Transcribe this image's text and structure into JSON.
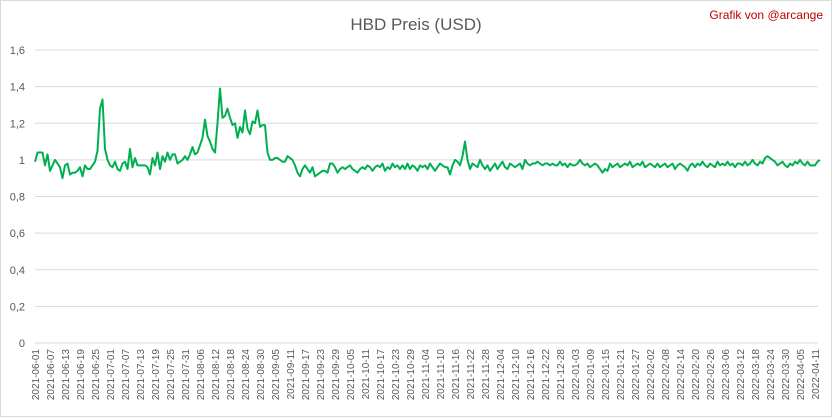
{
  "chart_data": {
    "type": "line",
    "title": "HBD Preis (USD)",
    "annotation": "Grafik von @arcange",
    "grid": true,
    "ylim": [
      0,
      1.6
    ],
    "yticks": [
      0,
      {
        "value": 0.2,
        "label": "0,2"
      },
      {
        "value": 0.4,
        "label": "0,4"
      },
      {
        "value": 0.6,
        "label": "0,6"
      },
      {
        "value": 0.8,
        "label": "0,8"
      },
      1,
      {
        "value": 1.2,
        "label": "1,2"
      },
      {
        "value": 1.4,
        "label": "1,4"
      },
      {
        "value": 1.6,
        "label": "1,6"
      }
    ],
    "categories": [
      "2021-06-01",
      null,
      null,
      null,
      null,
      null,
      "2021-06-07",
      null,
      null,
      null,
      null,
      null,
      "2021-06-13",
      null,
      null,
      null,
      null,
      null,
      "2021-06-19",
      null,
      null,
      null,
      null,
      null,
      "2021-06-25",
      null,
      null,
      null,
      null,
      null,
      "2021-07-01",
      null,
      null,
      null,
      null,
      null,
      "2021-07-07",
      null,
      null,
      null,
      null,
      null,
      "2021-07-13",
      null,
      null,
      null,
      null,
      null,
      "2021-07-19",
      null,
      null,
      null,
      null,
      null,
      "2021-07-25",
      null,
      null,
      null,
      null,
      null,
      "2021-07-31",
      null,
      null,
      null,
      null,
      null,
      "2021-08-06",
      null,
      null,
      null,
      null,
      null,
      "2021-08-12",
      null,
      null,
      null,
      null,
      null,
      "2021-08-18",
      null,
      null,
      null,
      null,
      null,
      "2021-08-24",
      null,
      null,
      null,
      null,
      null,
      "2021-08-30",
      null,
      null,
      null,
      null,
      null,
      "2021-09-05",
      null,
      null,
      null,
      null,
      null,
      "2021-09-11",
      null,
      null,
      null,
      null,
      null,
      "2021-09-17",
      null,
      null,
      null,
      null,
      null,
      "2021-09-23",
      null,
      null,
      null,
      null,
      null,
      "2021-09-29",
      null,
      null,
      null,
      null,
      null,
      "2021-10-05",
      null,
      null,
      null,
      null,
      null,
      "2021-10-11",
      null,
      null,
      null,
      null,
      null,
      "2021-10-17",
      null,
      null,
      null,
      null,
      null,
      "2021-10-23",
      null,
      null,
      null,
      null,
      null,
      "2021-10-29",
      null,
      null,
      null,
      null,
      null,
      "2021-11-04",
      null,
      null,
      null,
      null,
      null,
      "2021-11-10",
      null,
      null,
      null,
      null,
      null,
      "2021-11-16",
      null,
      null,
      null,
      null,
      null,
      "2021-11-22",
      null,
      null,
      null,
      null,
      null,
      "2021-11-28",
      null,
      null,
      null,
      null,
      null,
      "2021-12-04",
      null,
      null,
      null,
      null,
      null,
      "2021-12-10",
      null,
      null,
      null,
      null,
      null,
      "2021-12-16",
      null,
      null,
      null,
      null,
      null,
      "2021-12-22",
      null,
      null,
      null,
      null,
      null,
      "2021-12-28",
      null,
      null,
      null,
      null,
      null,
      "2022-01-03",
      null,
      null,
      null,
      null,
      null,
      "2022-01-09",
      null,
      null,
      null,
      null,
      null,
      "2022-01-15",
      null,
      null,
      null,
      null,
      null,
      "2022-01-21",
      null,
      null,
      null,
      null,
      null,
      "2022-01-27",
      null,
      null,
      null,
      null,
      null,
      "2022-02-02",
      null,
      null,
      null,
      null,
      null,
      "2022-02-08",
      null,
      null,
      null,
      null,
      null,
      "2022-02-14",
      null,
      null,
      null,
      null,
      null,
      "2022-02-20",
      null,
      null,
      null,
      null,
      null,
      "2022-02-26",
      null,
      null,
      null,
      null,
      null,
      "2022-03-06",
      null,
      null,
      null,
      null,
      null,
      "2022-03-12",
      null,
      null,
      null,
      null,
      null,
      "2022-03-18",
      null,
      null,
      null,
      null,
      null,
      "2022-03-24",
      null,
      null,
      null,
      null,
      null,
      "2022-03-30",
      null,
      null,
      null,
      null,
      null,
      "2022-04-05",
      null,
      null,
      null,
      null,
      null,
      "2022-04-11",
      null,
      null
    ],
    "series": [
      {
        "color": "#00b050",
        "values": [
          0.99,
          1.04,
          1.04,
          1.04,
          0.97,
          1.03,
          0.94,
          0.97,
          1.0,
          0.98,
          0.96,
          0.9,
          0.97,
          0.98,
          0.92,
          0.93,
          0.93,
          0.94,
          0.96,
          0.91,
          0.97,
          0.95,
          0.95,
          0.97,
          0.99,
          1.05,
          1.28,
          1.33,
          1.06,
          1.0,
          0.97,
          0.96,
          0.99,
          0.95,
          0.94,
          0.98,
          0.99,
          0.95,
          1.06,
          0.96,
          1.01,
          0.97,
          0.97,
          0.97,
          0.97,
          0.96,
          0.92,
          1.01,
          0.97,
          1.04,
          0.95,
          1.02,
          0.99,
          1.04,
          1.0,
          1.03,
          1.03,
          0.98,
          0.99,
          1.0,
          1.02,
          1.0,
          1.03,
          1.07,
          1.03,
          1.04,
          1.08,
          1.12,
          1.22,
          1.13,
          1.1,
          1.06,
          1.04,
          1.2,
          1.39,
          1.23,
          1.24,
          1.28,
          1.23,
          1.19,
          1.2,
          1.12,
          1.18,
          1.15,
          1.27,
          1.17,
          1.14,
          1.21,
          1.2,
          1.27,
          1.18,
          1.19,
          1.19,
          1.04,
          1.0,
          1.0,
          1.01,
          1.01,
          1.0,
          0.99,
          0.99,
          1.02,
          1.01,
          1.0,
          0.97,
          0.93,
          0.91,
          0.95,
          0.97,
          0.95,
          0.93,
          0.96,
          0.91,
          0.92,
          0.93,
          0.94,
          0.94,
          0.93,
          0.98,
          0.98,
          0.96,
          0.93,
          0.95,
          0.96,
          0.95,
          0.96,
          0.97,
          0.95,
          0.94,
          0.93,
          0.95,
          0.96,
          0.95,
          0.97,
          0.96,
          0.94,
          0.96,
          0.97,
          0.96,
          0.98,
          0.94,
          0.96,
          0.95,
          0.98,
          0.96,
          0.97,
          0.95,
          0.97,
          0.95,
          0.98,
          0.95,
          0.97,
          0.96,
          0.94,
          0.97,
          0.96,
          0.97,
          0.95,
          0.98,
          0.96,
          0.94,
          0.96,
          0.98,
          0.97,
          0.96,
          0.96,
          0.92,
          0.97,
          1.0,
          0.99,
          0.97,
          1.02,
          1.1,
          1.0,
          0.95,
          0.98,
          0.97,
          0.96,
          1.0,
          0.97,
          0.95,
          0.97,
          0.94,
          0.96,
          0.98,
          0.95,
          0.97,
          0.99,
          0.96,
          0.95,
          0.98,
          0.97,
          0.96,
          0.97,
          0.98,
          0.95,
          1.0,
          0.98,
          0.97,
          0.98,
          0.98,
          0.99,
          0.98,
          0.97,
          0.98,
          0.98,
          0.97,
          0.98,
          0.97,
          0.97,
          0.99,
          0.97,
          0.98,
          0.96,
          0.98,
          0.97,
          0.97,
          0.98,
          1.0,
          0.98,
          0.97,
          0.98,
          0.96,
          0.97,
          0.98,
          0.97,
          0.95,
          0.93,
          0.95,
          0.94,
          0.98,
          0.96,
          0.97,
          0.98,
          0.96,
          0.97,
          0.98,
          0.97,
          0.99,
          0.96,
          0.97,
          0.98,
          0.97,
          0.99,
          0.96,
          0.97,
          0.98,
          0.97,
          0.96,
          0.98,
          0.96,
          0.97,
          0.98,
          0.96,
          0.97,
          0.98,
          0.95,
          0.97,
          0.98,
          0.97,
          0.96,
          0.94,
          0.97,
          0.98,
          0.96,
          0.98,
          0.97,
          0.99,
          0.97,
          0.96,
          0.98,
          0.97,
          0.96,
          0.99,
          0.97,
          0.98,
          0.97,
          0.99,
          0.97,
          0.98,
          0.96,
          0.98,
          0.98,
          0.97,
          0.99,
          0.97,
          0.98,
          1.0,
          0.98,
          0.97,
          0.99,
          0.98,
          1.01,
          1.02,
          1.01,
          1.0,
          0.99,
          0.97,
          0.98,
          0.99,
          0.97,
          0.96,
          0.98,
          0.97,
          0.99,
          0.98,
          1.0,
          0.98,
          0.97,
          0.99,
          0.97,
          0.97,
          0.97,
          0.99,
          1.0
        ]
      }
    ]
  }
}
